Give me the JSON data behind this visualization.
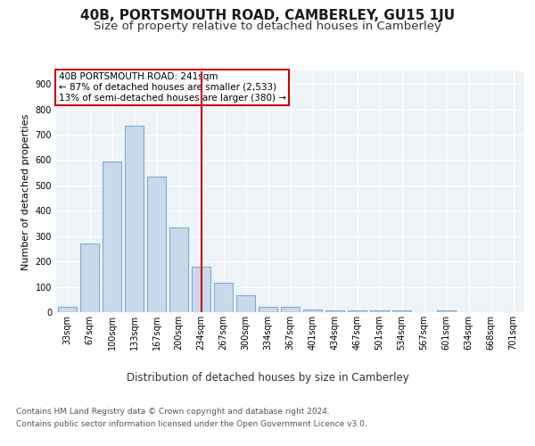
{
  "title": "40B, PORTSMOUTH ROAD, CAMBERLEY, GU15 1JU",
  "subtitle": "Size of property relative to detached houses in Camberley",
  "xlabel": "Distribution of detached houses by size in Camberley",
  "ylabel": "Number of detached properties",
  "categories": [
    "33sqm",
    "67sqm",
    "100sqm",
    "133sqm",
    "167sqm",
    "200sqm",
    "234sqm",
    "267sqm",
    "300sqm",
    "334sqm",
    "367sqm",
    "401sqm",
    "434sqm",
    "467sqm",
    "501sqm",
    "534sqm",
    "567sqm",
    "601sqm",
    "634sqm",
    "668sqm",
    "701sqm"
  ],
  "values": [
    20,
    270,
    595,
    735,
    535,
    335,
    178,
    115,
    68,
    22,
    20,
    12,
    8,
    8,
    8,
    7,
    0,
    7,
    0,
    0,
    0
  ],
  "bar_color": "#c9d9ec",
  "bar_edge_color": "#7aadd4",
  "bar_edge_width": 0.8,
  "vline_x_index": 6,
  "vline_color": "#cc0000",
  "vline_label": "40B PORTSMOUTH ROAD: 241sqm",
  "annotation_line2": "← 87% of detached houses are smaller (2,533)",
  "annotation_line3": "13% of semi-detached houses are larger (380) →",
  "annotation_box_color": "#cc0000",
  "ylim": [
    0,
    950
  ],
  "yticks": [
    0,
    100,
    200,
    300,
    400,
    500,
    600,
    700,
    800,
    900
  ],
  "background_color": "#ffffff",
  "plot_bg_color": "#eef3f8",
  "grid_color": "#ffffff",
  "footer_line1": "Contains HM Land Registry data © Crown copyright and database right 2024.",
  "footer_line2": "Contains public sector information licensed under the Open Government Licence v3.0.",
  "title_fontsize": 11,
  "subtitle_fontsize": 9.5,
  "axis_label_fontsize": 8.5,
  "ylabel_fontsize": 8,
  "tick_fontsize": 7,
  "annotation_fontsize": 7.5,
  "footer_fontsize": 6.5
}
